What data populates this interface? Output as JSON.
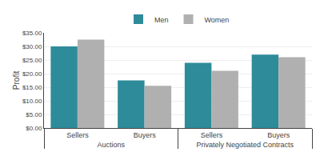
{
  "chart_data": {
    "type": "bar",
    "y_label": "Profit",
    "categories": [
      [
        "Auctions",
        "Sellers"
      ],
      [
        "Auctions",
        "Buyers"
      ],
      [
        "Privately Negotiated Contracts",
        "Sellers"
      ],
      [
        "Privately Negotiated Contracts",
        "Buyers"
      ]
    ],
    "series": [
      {
        "name": "Men",
        "color": "#2e8b9a",
        "values": [
          30.0,
          17.5,
          24.0,
          27.0
        ]
      },
      {
        "name": "Women",
        "color": "#b0b0b0",
        "values": [
          32.5,
          15.5,
          21.0,
          26.0
        ]
      }
    ],
    "ylim": [
      0,
      35
    ],
    "yticks": [
      {
        "value": 0,
        "label": "$0.00"
      },
      {
        "value": 5,
        "label": "$5.00"
      },
      {
        "value": 10,
        "label": "$10.00"
      },
      {
        "value": 15,
        "label": "$15.00"
      },
      {
        "value": 20,
        "label": "$20.00"
      },
      {
        "value": 25,
        "label": "$25.00"
      },
      {
        "value": 30,
        "label": "$30.00"
      },
      {
        "value": 35,
        "label": "$35.00"
      }
    ],
    "grid": true,
    "legend": "top"
  }
}
